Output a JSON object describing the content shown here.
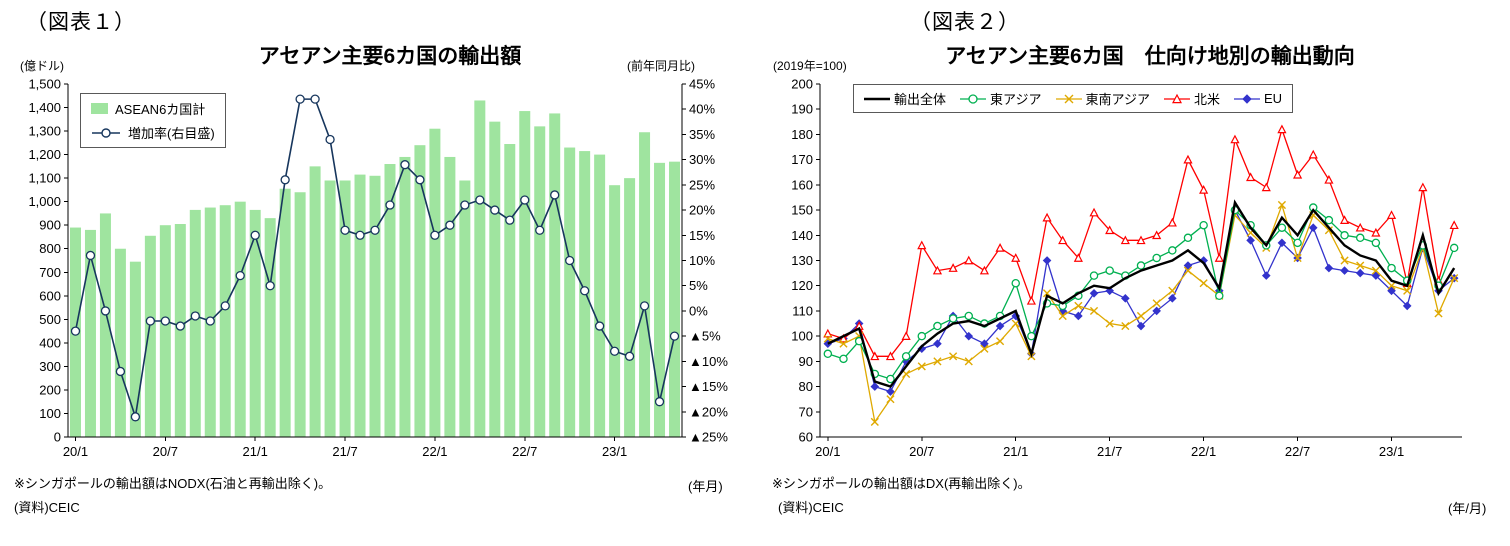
{
  "figure1": {
    "label": "（図表１）",
    "footnote": "※シンガポールの輸出額はNODX(石油と再輸出除く)。",
    "source": "(資料)CEIC"
  },
  "figure2": {
    "label": "（図表２）",
    "footnote": "※シンガポールの輸出額はDX(再輸出除く)。",
    "source": "(資料)CEIC"
  },
  "chart_data": [
    {
      "type": "bar+line",
      "title": "アセアン主要6カ国の輸出額",
      "x_axis_unit": "(年月)",
      "grid": false,
      "legend_position": "top-left-inside",
      "categories": [
        "20/1",
        "20/2",
        "20/3",
        "20/4",
        "20/5",
        "20/6",
        "20/7",
        "20/8",
        "20/9",
        "20/10",
        "20/11",
        "20/12",
        "21/1",
        "21/2",
        "21/3",
        "21/4",
        "21/5",
        "21/6",
        "21/7",
        "21/8",
        "21/9",
        "21/10",
        "21/11",
        "21/12",
        "22/1",
        "22/2",
        "22/3",
        "22/4",
        "22/5",
        "22/6",
        "22/7",
        "22/8",
        "22/9",
        "22/10",
        "22/11",
        "22/12",
        "23/1",
        "23/2",
        "23/3",
        "23/4",
        "23/5"
      ],
      "x_tick_indices": [
        0,
        6,
        12,
        18,
        24,
        30,
        36
      ],
      "x_tick_labels": [
        "20/1",
        "20/7",
        "21/1",
        "21/7",
        "22/1",
        "22/7",
        "23/1"
      ],
      "left_axis": {
        "unit": "(億ドル)",
        "min": 0,
        "max": 1500,
        "step": 100,
        "tick_labels": [
          "0",
          "100",
          "200",
          "300",
          "400",
          "500",
          "600",
          "700",
          "800",
          "900",
          "1,000",
          "1,100",
          "1,200",
          "1,300",
          "1,400",
          "1,500"
        ]
      },
      "right_axis": {
        "unit": "(前年同月比)",
        "min": -25,
        "max": 45,
        "step": 5,
        "tick_labels": [
          "▲25%",
          "▲20%",
          "▲15%",
          "▲10%",
          "▲5%",
          "0%",
          "5%",
          "10%",
          "15%",
          "20%",
          "25%",
          "30%",
          "35%",
          "40%",
          "45%"
        ]
      },
      "series": [
        {
          "key": "asean6-total",
          "name": "ASEAN6カ国計",
          "type": "bar",
          "axis": "left",
          "color": "#9FE49F",
          "values": [
            890,
            880,
            950,
            800,
            745,
            855,
            900,
            905,
            965,
            975,
            985,
            1000,
            965,
            930,
            1055,
            1040,
            1150,
            1090,
            1090,
            1115,
            1110,
            1160,
            1190,
            1240,
            1310,
            1190,
            1090,
            1430,
            1340,
            1245,
            1385,
            1320,
            1375,
            1230,
            1215,
            1200,
            1070,
            1100,
            1295,
            1165,
            1170
          ]
        },
        {
          "key": "growth-rate",
          "name": "増加率(右目盛)",
          "type": "line",
          "axis": "right",
          "marker": "circle-open",
          "color": "#17365D",
          "values": [
            -4,
            11,
            0,
            -12,
            -21,
            -2,
            -2,
            -3,
            -1,
            -2,
            1,
            7,
            15,
            5,
            26,
            42,
            42,
            34,
            16,
            15,
            16,
            21,
            29,
            26,
            15,
            17,
            21,
            22,
            20,
            18,
            22,
            16,
            23,
            10,
            4,
            -3,
            -8,
            -9,
            1,
            -18,
            -5
          ]
        }
      ]
    },
    {
      "type": "line",
      "title": "アセアン主要6カ国　仕向け地別の輸出動向",
      "x_axis_unit": "(年/月)",
      "grid": false,
      "legend_position": "top-inside",
      "y_axis": {
        "unit": "(2019年=100)",
        "min": 60,
        "max": 200,
        "step": 10,
        "tick_labels": [
          "60",
          "70",
          "80",
          "90",
          "100",
          "110",
          "120",
          "130",
          "140",
          "150",
          "160",
          "170",
          "180",
          "190",
          "200"
        ]
      },
      "categories": [
        "20/1",
        "20/2",
        "20/3",
        "20/4",
        "20/5",
        "20/6",
        "20/7",
        "20/8",
        "20/9",
        "20/10",
        "20/11",
        "20/12",
        "21/1",
        "21/2",
        "21/3",
        "21/4",
        "21/5",
        "21/6",
        "21/7",
        "21/8",
        "21/9",
        "21/10",
        "21/11",
        "21/12",
        "22/1",
        "22/2",
        "22/3",
        "22/4",
        "22/5",
        "22/6",
        "22/7",
        "22/8",
        "22/9",
        "22/10",
        "22/11",
        "22/12",
        "23/1",
        "23/2",
        "23/3",
        "23/4",
        "23/5"
      ],
      "x_tick_indices": [
        0,
        6,
        12,
        18,
        24,
        30,
        36
      ],
      "x_tick_labels": [
        "20/1",
        "20/7",
        "21/1",
        "21/7",
        "22/1",
        "22/7",
        "23/1"
      ],
      "series": [
        {
          "key": "total",
          "name": "輸出全体",
          "color": "#000000",
          "marker": "none",
          "width": 2.4,
          "values": [
            97,
            100,
            103,
            82,
            80,
            88,
            96,
            101,
            105,
            106,
            104,
            107,
            110,
            93,
            116,
            113,
            117,
            120,
            119,
            123,
            126,
            128,
            130,
            134,
            129,
            119,
            153,
            143,
            136,
            147,
            140,
            150,
            143,
            136,
            132,
            130,
            122,
            120,
            140,
            117,
            127
          ]
        },
        {
          "key": "east-asia",
          "name": "東アジア",
          "color": "#00B050",
          "marker": "circle-open",
          "width": 1.3,
          "values": [
            93,
            91,
            98,
            85,
            83,
            92,
            100,
            104,
            107,
            108,
            105,
            108,
            121,
            100,
            113,
            112,
            116,
            124,
            126,
            124,
            128,
            131,
            134,
            139,
            144,
            116,
            150,
            144,
            136,
            143,
            137,
            151,
            146,
            140,
            139,
            137,
            127,
            122,
            136,
            120,
            135
          ]
        },
        {
          "key": "southeast-asia",
          "name": "東南アジア",
          "color": "#DFA900",
          "marker": "x",
          "width": 1.3,
          "values": [
            99,
            97,
            100,
            66,
            75,
            85,
            88,
            90,
            92,
            90,
            95,
            98,
            105,
            92,
            117,
            108,
            112,
            110,
            105,
            104,
            108,
            113,
            118,
            126,
            121,
            116,
            148,
            141,
            135,
            152,
            131,
            148,
            142,
            130,
            128,
            126,
            120,
            118,
            135,
            109,
            123
          ]
        },
        {
          "key": "north-america",
          "name": "北米",
          "color": "#FF0000",
          "marker": "triangle-open",
          "width": 1.3,
          "values": [
            101,
            99,
            104,
            92,
            92,
            100,
            136,
            126,
            127,
            130,
            126,
            135,
            131,
            114,
            147,
            138,
            131,
            149,
            142,
            138,
            138,
            140,
            145,
            170,
            158,
            131,
            178,
            163,
            159,
            182,
            164,
            172,
            162,
            146,
            143,
            141,
            148,
            121,
            159,
            122,
            144
          ]
        },
        {
          "key": "eu",
          "name": "EU",
          "color": "#3333CC",
          "marker": "diamond",
          "width": 1.3,
          "values": [
            97,
            99,
            105,
            80,
            78,
            90,
            95,
            97,
            108,
            100,
            97,
            104,
            108,
            93,
            130,
            110,
            108,
            117,
            118,
            115,
            104,
            110,
            115,
            128,
            130,
            118,
            150,
            138,
            124,
            137,
            131,
            143,
            127,
            126,
            125,
            124,
            118,
            112,
            135,
            118,
            123
          ]
        }
      ]
    }
  ]
}
